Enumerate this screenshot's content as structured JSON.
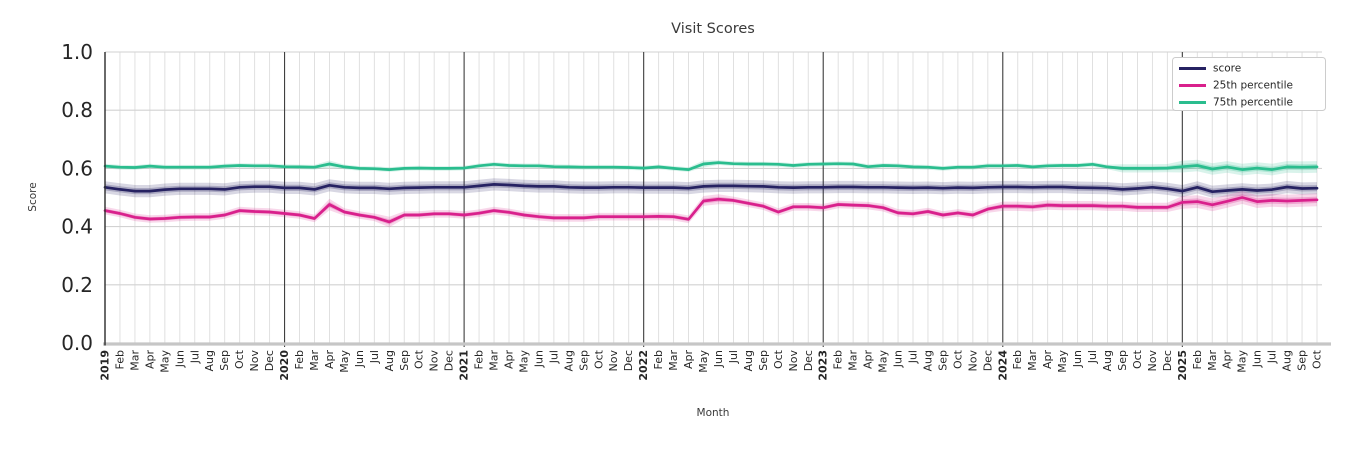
{
  "chart_data": {
    "type": "line",
    "title": "Visit Scores",
    "xlabel": "Month",
    "ylabel": "Score",
    "ylim": [
      0.0,
      1.0
    ],
    "yticks": [
      0.0,
      0.2,
      0.4,
      0.6,
      0.8,
      1.0
    ],
    "ytick_labels": [
      "0.0",
      "0.2",
      "0.4",
      "0.6",
      "0.8",
      "1.0"
    ],
    "grid": true,
    "legend_position": "upper right",
    "x_year_indices": [
      0,
      12,
      24,
      36,
      48,
      60,
      72
    ],
    "x_labels": [
      "2019",
      "Feb",
      "Mar",
      "Apr",
      "May",
      "Jun",
      "Jul",
      "Aug",
      "Sep",
      "Oct",
      "Nov",
      "Dec",
      "2020",
      "Feb",
      "Mar",
      "Apr",
      "May",
      "Jun",
      "Jul",
      "Aug",
      "Sep",
      "Oct",
      "Nov",
      "Dec",
      "2021",
      "Feb",
      "Mar",
      "Apr",
      "May",
      "Jun",
      "Jul",
      "Aug",
      "Sep",
      "Oct",
      "Nov",
      "Dec",
      "2022",
      "Feb",
      "Mar",
      "Apr",
      "May",
      "Jun",
      "Jul",
      "Aug",
      "Sep",
      "Oct",
      "Nov",
      "Dec",
      "2023",
      "Feb",
      "Mar",
      "Apr",
      "May",
      "Jun",
      "Jul",
      "Aug",
      "Sep",
      "Oct",
      "Nov",
      "Dec",
      "2024",
      "Feb",
      "Mar",
      "Apr",
      "May",
      "Jun",
      "Jul",
      "Aug",
      "Sep",
      "Oct",
      "Nov",
      "Dec",
      "2025",
      "Feb",
      "Mar",
      "Apr",
      "May",
      "Jun",
      "Jul",
      "Aug",
      "Sep",
      "Oct"
    ],
    "series": [
      {
        "name": "score",
        "color": "#262262",
        "band": {
          "default": 0.021,
          "overrides": {}
        },
        "values": [
          0.535,
          0.528,
          0.522,
          0.522,
          0.527,
          0.53,
          0.53,
          0.53,
          0.528,
          0.535,
          0.537,
          0.537,
          0.533,
          0.533,
          0.528,
          0.542,
          0.535,
          0.533,
          0.533,
          0.53,
          0.533,
          0.534,
          0.535,
          0.535,
          0.535,
          0.54,
          0.545,
          0.543,
          0.54,
          0.538,
          0.538,
          0.535,
          0.534,
          0.534,
          0.535,
          0.535,
          0.534,
          0.534,
          0.534,
          0.532,
          0.538,
          0.54,
          0.54,
          0.539,
          0.538,
          0.535,
          0.534,
          0.535,
          0.535,
          0.536,
          0.536,
          0.535,
          0.535,
          0.534,
          0.533,
          0.534,
          0.532,
          0.534,
          0.533,
          0.535,
          0.536,
          0.536,
          0.535,
          0.536,
          0.536,
          0.534,
          0.533,
          0.532,
          0.528,
          0.531,
          0.535,
          0.53,
          0.522,
          0.535,
          0.52,
          0.524,
          0.528,
          0.524,
          0.527,
          0.536,
          0.531,
          0.532
        ]
      },
      {
        "name": "25th percentile",
        "color": "#d9208c",
        "band": {
          "default": 0.013,
          "overrides": {
            "15": 0.02,
            "19": 0.018,
            "40": 0.017,
            "41": 0.017,
            "60": 0.016,
            "61": 0.016,
            "62": 0.016,
            "63": 0.016,
            "64": 0.016,
            "65": 0.016,
            "66": 0.016,
            "67": 0.016,
            "68": 0.016,
            "69": 0.016,
            "70": 0.016,
            "71": 0.016,
            "72": 0.022,
            "73": 0.022,
            "74": 0.022,
            "75": 0.022,
            "76": 0.022,
            "77": 0.022,
            "78": 0.022,
            "79": 0.022,
            "80": 0.022,
            "81": 0.022
          }
        },
        "values": [
          0.455,
          0.445,
          0.432,
          0.426,
          0.428,
          0.432,
          0.433,
          0.433,
          0.44,
          0.455,
          0.452,
          0.45,
          0.445,
          0.44,
          0.428,
          0.476,
          0.45,
          0.44,
          0.432,
          0.416,
          0.44,
          0.44,
          0.444,
          0.444,
          0.44,
          0.446,
          0.455,
          0.449,
          0.44,
          0.434,
          0.43,
          0.43,
          0.43,
          0.434,
          0.434,
          0.434,
          0.434,
          0.435,
          0.434,
          0.425,
          0.488,
          0.494,
          0.49,
          0.48,
          0.47,
          0.45,
          0.468,
          0.468,
          0.465,
          0.476,
          0.474,
          0.472,
          0.465,
          0.447,
          0.444,
          0.452,
          0.44,
          0.447,
          0.44,
          0.46,
          0.47,
          0.47,
          0.468,
          0.474,
          0.472,
          0.472,
          0.472,
          0.47,
          0.47,
          0.466,
          0.466,
          0.466,
          0.483,
          0.486,
          0.475,
          0.487,
          0.5,
          0.486,
          0.49,
          0.488,
          0.49,
          0.492
        ]
      },
      {
        "name": "75th percentile",
        "color": "#2abd8e",
        "band": {
          "default": 0.008,
          "overrides": {
            "15": 0.012,
            "40": 0.012,
            "68": 0.014,
            "69": 0.014,
            "70": 0.014,
            "71": 0.014,
            "72": 0.02,
            "73": 0.02,
            "74": 0.02,
            "75": 0.02,
            "76": 0.02,
            "77": 0.02,
            "78": 0.02,
            "79": 0.02,
            "80": 0.02,
            "81": 0.02
          }
        },
        "values": [
          0.608,
          0.604,
          0.603,
          0.608,
          0.604,
          0.604,
          0.604,
          0.604,
          0.608,
          0.61,
          0.609,
          0.609,
          0.606,
          0.605,
          0.604,
          0.615,
          0.605,
          0.6,
          0.599,
          0.596,
          0.6,
          0.601,
          0.6,
          0.6,
          0.601,
          0.609,
          0.614,
          0.61,
          0.609,
          0.609,
          0.606,
          0.605,
          0.604,
          0.604,
          0.604,
          0.603,
          0.601,
          0.605,
          0.6,
          0.596,
          0.615,
          0.62,
          0.616,
          0.615,
          0.615,
          0.614,
          0.61,
          0.614,
          0.615,
          0.616,
          0.615,
          0.606,
          0.61,
          0.609,
          0.605,
          0.604,
          0.6,
          0.604,
          0.604,
          0.609,
          0.609,
          0.61,
          0.605,
          0.609,
          0.61,
          0.61,
          0.614,
          0.605,
          0.6,
          0.6,
          0.6,
          0.601,
          0.606,
          0.61,
          0.598,
          0.605,
          0.596,
          0.601,
          0.596,
          0.605,
          0.604,
          0.605
        ]
      }
    ],
    "colors": {
      "grid_vertical": "#dddddd",
      "grid_horizontal": "#d2d2d2",
      "year_line": "#404040",
      "left_spine": "#2b2b2b",
      "bottom_spine": "#c6c6c6",
      "legend_border": "#cccccc",
      "text": "#262626"
    }
  }
}
